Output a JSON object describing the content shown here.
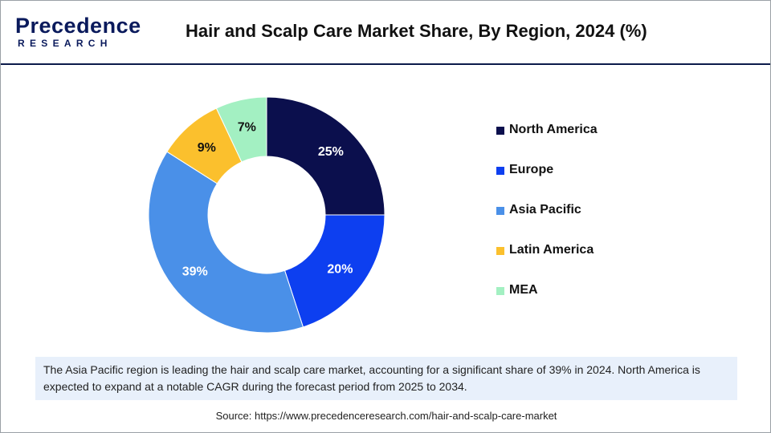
{
  "header": {
    "logo_word": "Precedence",
    "logo_sub": "RESEARCH",
    "title": "Hair and Scalp Care Market Share, By Region, 2024 (%)"
  },
  "colors": {
    "brand": "#0a1a5c",
    "note_bg": "#e8f0fb"
  },
  "chart_data": {
    "type": "pie",
    "variant": "donut",
    "title": "Hair and Scalp Care Market Share, By Region, 2024 (%)",
    "legend_position": "right",
    "slices": [
      {
        "name": "North America",
        "value": 25,
        "label": "25%",
        "color": "#0b0f4d",
        "label_color": "#ffffff"
      },
      {
        "name": "Europe",
        "value": 20,
        "label": "20%",
        "color": "#0d3ff0",
        "label_color": "#ffffff"
      },
      {
        "name": "Asia Pacific",
        "value": 39,
        "label": "39%",
        "color": "#4a90e8",
        "label_color": "#ffffff"
      },
      {
        "name": "Latin America",
        "value": 9,
        "label": "9%",
        "color": "#fbc02d",
        "label_color": "#111111"
      },
      {
        "name": "MEA",
        "value": 7,
        "label": "7%",
        "color": "#a3f0c2",
        "label_color": "#111111"
      }
    ]
  },
  "note": {
    "text": "The Asia Pacific region is leading the hair and scalp care market, accounting for a significant share of 39% in 2024. North America is expected to expand at a notable CAGR during the forecast period from 2025 to 2034."
  },
  "source": {
    "text": "Source: https://www.precedenceresearch.com/hair-and-scalp-care-market"
  }
}
